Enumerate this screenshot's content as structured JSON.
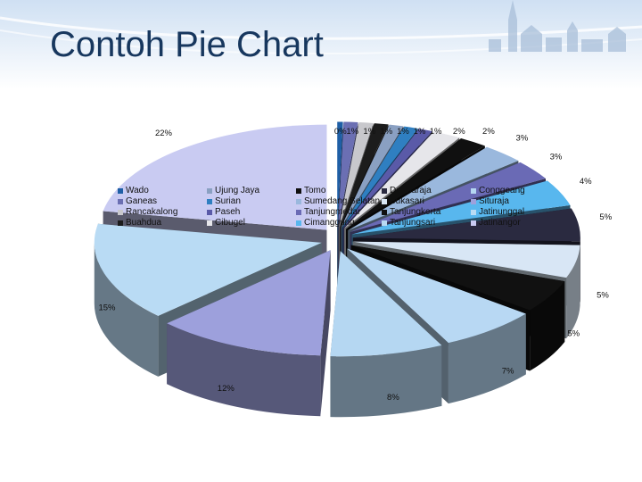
{
  "slide": {
    "title": "Contoh Pie Chart",
    "header_color": "#dde9f6",
    "title_color": "#17375e"
  },
  "chart_data": {
    "type": "pie",
    "title": "",
    "style": "3d-exploded",
    "legend_position": "top",
    "categories": [
      "Wado",
      "Ganeas",
      "Rancakalong",
      "Buahdua",
      "Ujung Jaya",
      "Surian",
      "Paseh",
      "Cibugel",
      "Tomo",
      "Sumedang Selatan",
      "Tanjungmedar",
      "Cimanggung",
      "Darmaraja",
      "Sukasari",
      "Tanjungkerta",
      "Tanjungsari",
      "Conggeang",
      "Situraja",
      "Jatinunggal",
      "Jatinangor"
    ],
    "values": [
      0,
      1,
      1,
      1,
      1,
      1,
      1,
      2,
      2,
      3,
      3,
      4,
      5,
      5,
      5,
      7,
      8,
      12,
      15,
      22
    ],
    "labels": [
      "0%",
      "1%",
      "1%",
      "1%",
      "1%",
      "1%",
      "1%",
      "2%",
      "2%",
      "3%",
      "3%",
      "4%",
      "5%",
      "5%",
      "5%",
      "7%",
      "8%",
      "12%",
      "15%",
      "22%"
    ],
    "colors": [
      "#1f5fa6",
      "#6b6fb3",
      "#c8c8cc",
      "#1c1c1c",
      "#8aa0c2",
      "#2f7fc1",
      "#5a5aa8",
      "#e6e6ea",
      "#101010",
      "#9ab8dd",
      "#6a6ab5",
      "#58b7ee",
      "#2a2a40",
      "#d8e6f5",
      "#111111",
      "#b8d8f3",
      "#b5d7f2",
      "#9da0dc",
      "#b9dbf4",
      "#c9cbf2"
    ]
  }
}
